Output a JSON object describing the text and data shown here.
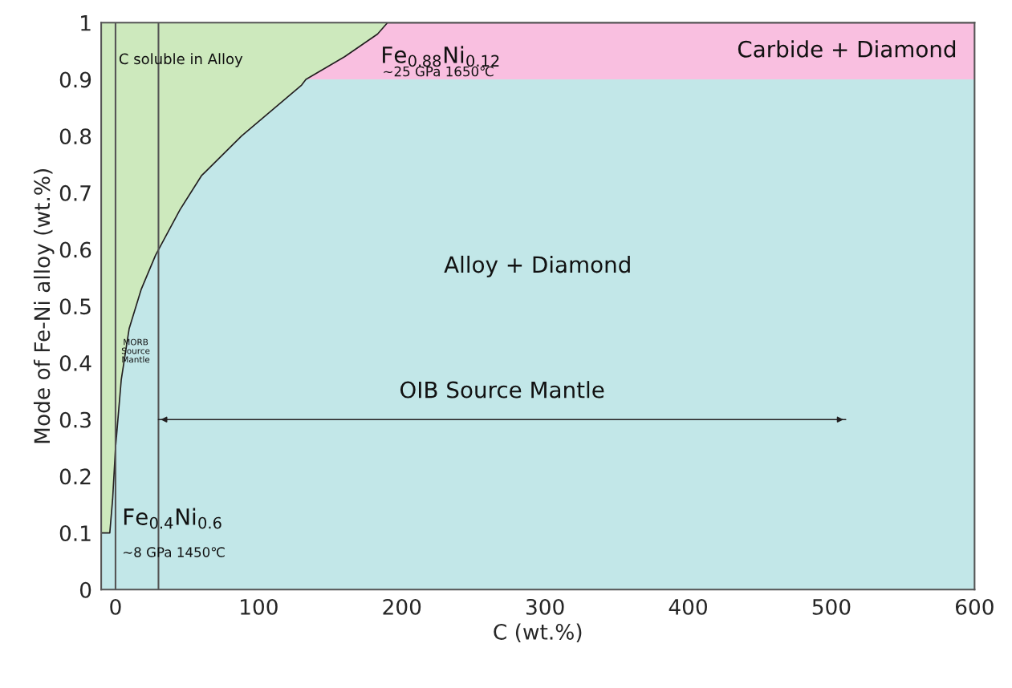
{
  "chart_data": {
    "type": "area",
    "xlabel": "C (wt.%)",
    "ylabel": "Mode of Fe-Ni alloy (wt.%)",
    "xlim": [
      -10,
      600
    ],
    "ylim": [
      0,
      1
    ],
    "xticks": [
      0,
      100,
      200,
      300,
      400,
      500,
      600
    ],
    "yticks": [
      0,
      0.1,
      0.2,
      0.3,
      0.4,
      0.5,
      0.6,
      0.7,
      0.8,
      0.9,
      1
    ],
    "bands": [
      {
        "axis": "y",
        "from": 0,
        "to": 1,
        "color": "#cde9bd"
      }
    ],
    "ref_lines": [
      {
        "axis": "x",
        "value": 0,
        "color": "#555555"
      },
      {
        "axis": "x",
        "value": 30,
        "color": "#555555"
      }
    ],
    "grid": false,
    "legend": false,
    "stacked": true,
    "x": [
      -10,
      -4,
      -2,
      0,
      4,
      9.5,
      18,
      28,
      45,
      60,
      88,
      130,
      133,
      160,
      183,
      190,
      600
    ],
    "series": [
      {
        "name": "Alloy + Diamond",
        "color": "#c2e7e8",
        "values": [
          0.1,
          0.1,
          0.16,
          0.25,
          0.37,
          0.46,
          0.53,
          0.59,
          0.67,
          0.73,
          0.8,
          0.89,
          0.9,
          0.9,
          0.9,
          0.9,
          0.9
        ]
      },
      {
        "name": "Carbide + Diamond",
        "color": "#f9bfe0",
        "values": [
          0,
          0,
          0,
          0,
          0,
          0,
          0,
          0,
          0,
          0,
          0,
          0,
          0,
          0.04,
          0.08,
          0.1,
          0.1
        ]
      },
      {
        "type": "line",
        "name": "OIB Source Mantle",
        "color": "#231f20",
        "x": [
          30,
          510
        ],
        "values": [
          0.3,
          0.3
        ]
      }
    ],
    "annotations": [
      "C soluble in Alloy",
      "Fe$_{0.88}$Ni$_{0.12}$",
      "~25 GPa 1650℃",
      "Fe$_{0.4}$Ni$_{0.6}$",
      "~8 GPa 1450℃",
      "MORB\nSource\nMantle"
    ]
  }
}
